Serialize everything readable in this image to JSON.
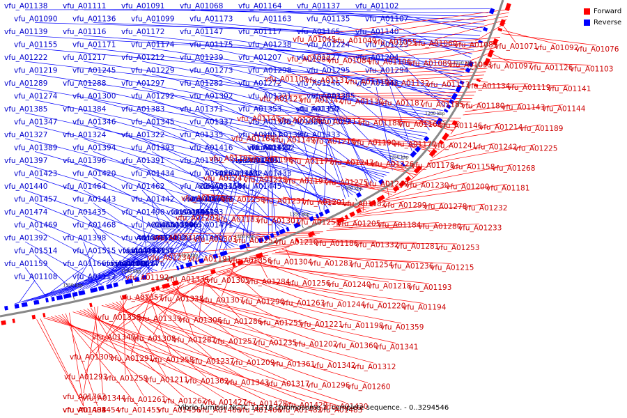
{
  "caption": "Vibrio furnissii NCTC 11218 chromosome 1, complete sequence. - 0..3294546",
  "legend": [
    {
      "label": "Forward",
      "color": "#ff0000"
    },
    {
      "label": "Reverse",
      "color": "#0000ff"
    }
  ],
  "colors": {
    "forward": "#ff0000",
    "reverse": "#0000ff",
    "axis": "#888888",
    "label_reverse": "#0000cc",
    "label_forward": "#cc0000"
  },
  "ticks": [
    "1150 kbp",
    "1200 kbp",
    "1250 kbp",
    "1300 kbp",
    "1350 kbp",
    "1400 kbp",
    "1450 kbp",
    "1500 kbp",
    "1550 kbp"
  ],
  "reverse_labels": [
    "vfu_A01138",
    "vfu_A01111",
    "vfu_A01091",
    "vfu_A01068",
    "vfu_A01164",
    "vfu_A01137",
    "vfu_A01102",
    "vfu_A01090",
    "vfu_A01136",
    "vfu_A01099",
    "vfu_A01173",
    "vfu_A01163",
    "vfu_A01135",
    "vfu_A01107",
    "vfu_A01139",
    "vfu_A01116",
    "vfu_A01172",
    "vfu_A01147",
    "vfu_A01117",
    "vfu_A01165",
    "vfu_A01140",
    "vfu_A01155",
    "vfu_A01171",
    "vfu_A01174",
    "vfu_A01175",
    "vfu_A01238",
    "vfu_A01224",
    "vfu_A01223",
    "vfu_A01222",
    "vfu_A01217",
    "vfu_A01212",
    "vfu_A01239",
    "vfu_A01207",
    "vfu_A01227",
    "vfu_A01204",
    "vfu_A01219",
    "vfu_A01245",
    "vfu_A01229",
    "vfu_A01273",
    "vfu_A01298",
    "vfu_A01295",
    "vfu_A01294",
    "vfu_A01289",
    "vfu_A01288",
    "vfu_A01297",
    "vfu_A01282",
    "vfu_A01272",
    "vfu_A01246",
    "vfu_A01248",
    "vfu_A01274",
    "vfu_A01300",
    "vfu_A01292",
    "vfu_A01302",
    "vfu_A01321",
    "vfu_A01330",
    "vfu_A01355",
    "vfu_A01385",
    "vfu_A01384",
    "vfu_A01383",
    "vfu_A01371",
    "vfu_A01353",
    "vfu_A01352",
    "vfu_A01350",
    "vfu_A01347",
    "vfu_A01346",
    "vfu_A01345",
    "vfu_A01337",
    "vfu_A01336",
    "vfu_A01329",
    "vfu_A01328",
    "vfu_A01327",
    "vfu_A01324",
    "vfu_A01322",
    "vfu_A01335",
    "vfu_A01351",
    "vfu_A01333",
    "vfu_A01387",
    "vfu_A01389",
    "vfu_A01394",
    "vfu_A01393",
    "vfu_A01416",
    "vfu_A01422",
    "vfu_A01412",
    "vfu_A01410",
    "vfu_A01397",
    "vfu_A01396",
    "vfu_A01391",
    "vfu_A01382",
    "vfu_A01381",
    "vfu_A01395",
    "vfu_A01426",
    "vfu_A01423",
    "vfu_A01420",
    "vfu_A01434",
    "vfu_A01425",
    "vfu_A01433",
    "vfu_A01432",
    "vfu_A01451",
    "vfu_A01440",
    "vfu_A01464",
    "vfu_A01462",
    "vfu_A01446",
    "vfu_A01445",
    "vfu_A01444",
    "vfu_A01458",
    "vfu_A01457",
    "vfu_A01443",
    "vfu_A01442",
    "vfu_A01439",
    "vfu_A01486",
    "vfu_A01475",
    "vfu_A01463",
    "vfu_A01474",
    "vfu_A01435",
    "vfu_A01490",
    "vfu_A01453",
    "vfu_A01472",
    "vfu_A01461",
    "vfu_A01495",
    "vfu_A01469",
    "vfu_A01468",
    "vfu_A01485",
    "vfu_A01471",
    "vfu_A01465",
    "vfu_A01496",
    "vfu_A01390",
    "vfu_A01392",
    "vfu_A01398",
    "vfu_A01399",
    "vfu_A01400",
    "vfu_A01402",
    "vfu_A01509",
    "vfu_A01511",
    "vfu_A01514",
    "vfu_A01515",
    "vfu_A01150",
    "vfu_A01151",
    "vfu_A01153",
    "vfu_A01162",
    "vfu_A01167",
    "vfu_A01159",
    "vfu_A01166",
    "vfu_A01176",
    "vfu_A01154",
    "vfu_A01067",
    "vfu_A01096",
    "vfu_A01100",
    "vfu_A01108",
    "vfu_A01112"
  ],
  "forward_labels": [
    "vfu_A01045",
    "vfu_A01049",
    "vfu_A01055",
    "vfu_A01060",
    "vfu_A01085",
    "vfu_A01071",
    "vfu_A01092",
    "vfu_A01076",
    "vfu_A01080",
    "vfu_A01084",
    "vfu_A01106",
    "vfu_A01089",
    "vfu_A01093",
    "vfu_A01097",
    "vfu_A01126",
    "vfu_A01103",
    "vfu_A01109",
    "vfu_A01131",
    "vfu_A01110",
    "vfu_A01132",
    "vfu_A01113",
    "vfu_A01134",
    "vfu_A01119",
    "vfu_A01141",
    "vfu_A01125",
    "vfu_A01142",
    "vfu_A01130",
    "vfu_A01187",
    "vfu_A01185",
    "vfu_A01180",
    "vfu_A01143",
    "vfu_A01144",
    "vfu_A01145",
    "vfu_A01206",
    "vfu_A01213",
    "vfu_A01188",
    "vfu_A01168",
    "vfu_A01146",
    "vfu_A01214",
    "vfu_A01189",
    "vfu_A01169",
    "vfu_A01149",
    "vfu_A01216",
    "vfu_A01190",
    "vfu_A01170",
    "vfu_A01241",
    "vfu_A01242",
    "vfu_A01225",
    "vfu_A01195",
    "vfu_A01196",
    "vfu_A01177",
    "vfu_A01243",
    "vfu_A01226",
    "vfu_A01178",
    "vfu_A01158",
    "vfu_A01268",
    "vfu_A01247",
    "vfu_A01228",
    "vfu_A01197",
    "vfu_A01275",
    "vfu_A01249",
    "vfu_A01230",
    "vfu_A01200",
    "vfu_A01181",
    "vfu_A01276",
    "vfu_A01250",
    "vfu_A01231",
    "vfu_A01201",
    "vfu_A01182",
    "vfu_A01299",
    "vfu_A01278",
    "vfu_A01232",
    "vfu_A01203",
    "vfu_A01183",
    "vfu_A01301",
    "vfu_A01251",
    "vfu_A01205",
    "vfu_A01184",
    "vfu_A01280",
    "vfu_A01233",
    "vfu_A01331",
    "vfu_A01303",
    "vfu_A01252",
    "vfu_A01210",
    "vfu_A01186",
    "vfu_A01332",
    "vfu_A01281",
    "vfu_A01253",
    "vfu_A01234",
    "vfu_A01191",
    "vfu_A01356",
    "vfu_A01304",
    "vfu_A01283",
    "vfu_A01254",
    "vfu_A01236",
    "vfu_A01215",
    "vfu_A01192",
    "vfu_A01334",
    "vfu_A01305",
    "vfu_A01284",
    "vfu_A01256",
    "vfu_A01240",
    "vfu_A01218",
    "vfu_A01193",
    "vfu_A01357",
    "vfu_A01338",
    "vfu_A01307",
    "vfu_A01290",
    "vfu_A01263",
    "vfu_A01244",
    "vfu_A01220",
    "vfu_A01194",
    "vfu_A01358",
    "vfu_A01339",
    "vfu_A01306",
    "vfu_A01286",
    "vfu_A01255",
    "vfu_A01221",
    "vfu_A01198",
    "vfu_A01359",
    "vfu_A01340",
    "vfu_A01308",
    "vfu_A01287",
    "vfu_A01257",
    "vfu_A01235",
    "vfu_A01202",
    "vfu_A01360",
    "vfu_A01341",
    "vfu_A01309",
    "vfu_A01291",
    "vfu_A01258",
    "vfu_A01237",
    "vfu_A01209",
    "vfu_A01361",
    "vfu_A01342",
    "vfu_A01312",
    "vfu_A01293",
    "vfu_A01259",
    "vfu_A01211",
    "vfu_A01362",
    "vfu_A01343",
    "vfu_A01317",
    "vfu_A01296",
    "vfu_A01260",
    "vfu_A01363",
    "vfu_A01344",
    "vfu_A01261",
    "vfu_A01262",
    "vfu_A01427",
    "vfu_A01428",
    "vfu_A01429",
    "vfu_A01430",
    "vfu_A01438",
    "vfu_A01454",
    "vfu_A01455",
    "vfu_A01456",
    "vfu_A01460",
    "vfu_A01466",
    "vfu_A01482",
    "vfu_A01483",
    "vfu_A01484",
    "vfu_A01488"
  ]
}
